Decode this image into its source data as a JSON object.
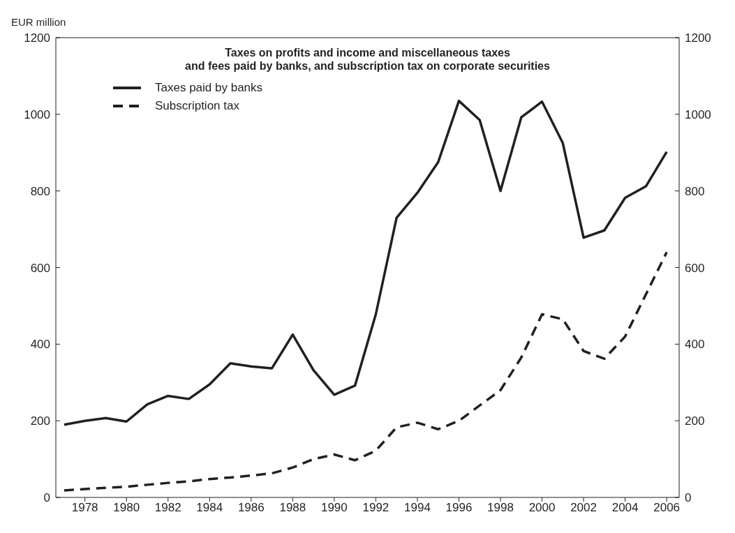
{
  "chart_data": {
    "type": "line",
    "title": "Taxes on profits and income and miscellaneous taxes\nand fees paid by banks, and subscription tax on corporate securities",
    "ylabel": "EUR million",
    "x": [
      1977,
      1978,
      1979,
      1980,
      1981,
      1982,
      1983,
      1984,
      1985,
      1986,
      1987,
      1988,
      1989,
      1990,
      1991,
      1992,
      1993,
      1994,
      1995,
      1996,
      1997,
      1998,
      1999,
      2000,
      2001,
      2002,
      2003,
      2004,
      2005,
      2006
    ],
    "series": [
      {
        "name": "Taxes paid by banks",
        "color": "#231f20",
        "line_style": "solid",
        "values": [
          190,
          200,
          207,
          198,
          243,
          265,
          257,
          295,
          350,
          342,
          337,
          425,
          332,
          268,
          292,
          478,
          730,
          795,
          875,
          1035,
          985,
          800,
          992,
          1033,
          925,
          678,
          697,
          782,
          812,
          902
        ]
      },
      {
        "name": "Subscription tax",
        "color": "#231f20",
        "line_style": "dashed",
        "values": [
          18,
          22,
          25,
          28,
          33,
          38,
          42,
          48,
          52,
          57,
          63,
          78,
          100,
          112,
          97,
          122,
          183,
          195,
          178,
          200,
          240,
          280,
          365,
          478,
          465,
          382,
          362,
          420,
          530,
          640
        ]
      }
    ],
    "xlim": [
      1976.6,
      2006.6
    ],
    "xticks": [
      1978,
      1980,
      1982,
      1984,
      1986,
      1988,
      1990,
      1992,
      1994,
      1996,
      1998,
      2000,
      2002,
      2004,
      2006
    ],
    "ylim": [
      0,
      1200
    ],
    "yticks": [
      0,
      200,
      400,
      600,
      800,
      1000,
      1200
    ],
    "y2lim": [
      0,
      1200
    ],
    "y2ticks": [
      0,
      200,
      400,
      600,
      800,
      1000,
      1200
    ],
    "grid": false,
    "legend": "top left",
    "marker": "none"
  }
}
